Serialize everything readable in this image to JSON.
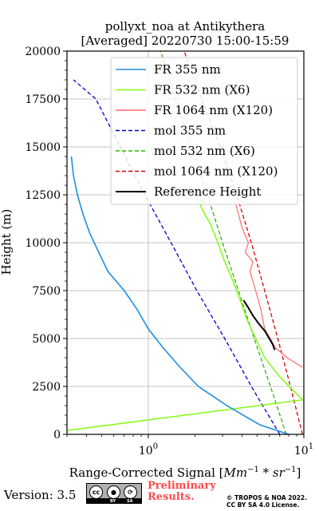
{
  "title_line1": "pollyxt_noa at Antikythera",
  "title_line2": "[Averaged] 20220730 15:00-15:59",
  "footer": {
    "version": "Version: 3.5",
    "cc_text": "cc",
    "cc_by": "BY",
    "cc_sa": "SA",
    "preliminary_line1": "Preliminary",
    "preliminary_line2": "Results.",
    "copyright_line1": "© TROPOS & NOA 2022.",
    "copyright_line2": "CC BY SA 4.0 License."
  },
  "chart_data": {
    "type": "line",
    "title": "pollyxt_noa at Antikythera [Averaged] 20220730 15:00-15:59",
    "xlabel": "Range-Corrected Signal [Mm^-1 * sr^-1]",
    "ylabel": "Height (m)",
    "xscale": "log",
    "xlim": [
      0.3,
      10
    ],
    "ylim": [
      0,
      20000
    ],
    "yticks": [
      0,
      2500,
      5000,
      7500,
      10000,
      12500,
      15000,
      17500,
      20000
    ],
    "xtick_labels": [
      "10^0",
      "10^1"
    ],
    "grid": true,
    "legend_position": "top-right",
    "legend": [
      {
        "label": "FR 355 nm",
        "color": "#1f8de0",
        "style": "solid"
      },
      {
        "label": "FR 532 nm (X6)",
        "color": "#7cfc00",
        "style": "solid"
      },
      {
        "label": "FR 1064 nm (X120)",
        "color": "#ff6a6a",
        "style": "solid"
      },
      {
        "label": "mol 355 nm",
        "color": "#0000cc",
        "style": "dashed"
      },
      {
        "label": "mol 532 nm (X6)",
        "color": "#22bb00",
        "style": "dashed"
      },
      {
        "label": "mol 1064 nm (X120)",
        "color": "#dd0000",
        "style": "dashed"
      },
      {
        "label": "Reference Height",
        "color": "#000000",
        "style": "solid"
      }
    ],
    "series": [
      {
        "name": "mol 355 nm",
        "x": [
          7.0,
          4.6,
          3.1,
          2.05,
          1.4,
          0.95,
          0.66,
          0.46,
          0.33
        ],
        "y": [
          0,
          2500,
          5000,
          7500,
          10000,
          12500,
          15000,
          17500,
          18500
        ]
      },
      {
        "name": "mol 532 nm (X6)",
        "x": [
          7.7,
          6.1,
          4.8,
          3.8,
          3.0,
          2.4,
          1.9,
          1.5,
          1.2
        ],
        "y": [
          0,
          2500,
          5000,
          7500,
          10000,
          12500,
          15000,
          17500,
          20000
        ]
      },
      {
        "name": "mol 1064 nm (X120)",
        "x": [
          9.8,
          8.2,
          6.8,
          5.6,
          4.6,
          3.7,
          2.9,
          2.2,
          1.7
        ],
        "y": [
          0,
          2500,
          5000,
          7500,
          10000,
          12500,
          15000,
          17500,
          20000
        ]
      },
      {
        "name": "FR 355 nm",
        "x": [
          8.0,
          5.2,
          3.2,
          2.1,
          1.6,
          1.25,
          1.0,
          0.85,
          0.7,
          0.55,
          0.48,
          0.42,
          0.38,
          0.35,
          0.33,
          0.32
        ],
        "y": [
          0,
          500,
          1500,
          2500,
          3500,
          4500,
          5500,
          6500,
          7500,
          8500,
          9500,
          10500,
          11500,
          12500,
          13500,
          14500
        ]
      },
      {
        "name": "FR 532 nm (X6)",
        "x": [
          0.3,
          9.8,
          7.0,
          5.6,
          4.9,
          4.3,
          3.9,
          3.5,
          3.1,
          2.8,
          2.5,
          2.3,
          2.15,
          2.3,
          2.05,
          1.75
        ],
        "y": [
          200,
          1800,
          3000,
          4000,
          5000,
          6000,
          7000,
          8000,
          9000,
          10000,
          11000,
          11500,
          12000,
          12300,
          12600,
          13000
        ]
      },
      {
        "name": "FR 1064 nm (X120)",
        "x": [
          9.8,
          7.8,
          6.6,
          5.6,
          5.3,
          4.9,
          4.5,
          4.7,
          4.2,
          4.4,
          4.0,
          3.8,
          3.6,
          3.4
        ],
        "y": [
          3500,
          4000,
          4500,
          5500,
          6500,
          7500,
          8500,
          9000,
          9500,
          10000,
          10800,
          11500,
          12200,
          12800
        ]
      },
      {
        "name": "Reference Height",
        "x": [
          4.1,
          4.4,
          4.7,
          5.1,
          5.6,
          6.0,
          6.3,
          6.5
        ],
        "y": [
          7000,
          6600,
          6200,
          5800,
          5400,
          5000,
          4700,
          4400
        ]
      }
    ]
  }
}
